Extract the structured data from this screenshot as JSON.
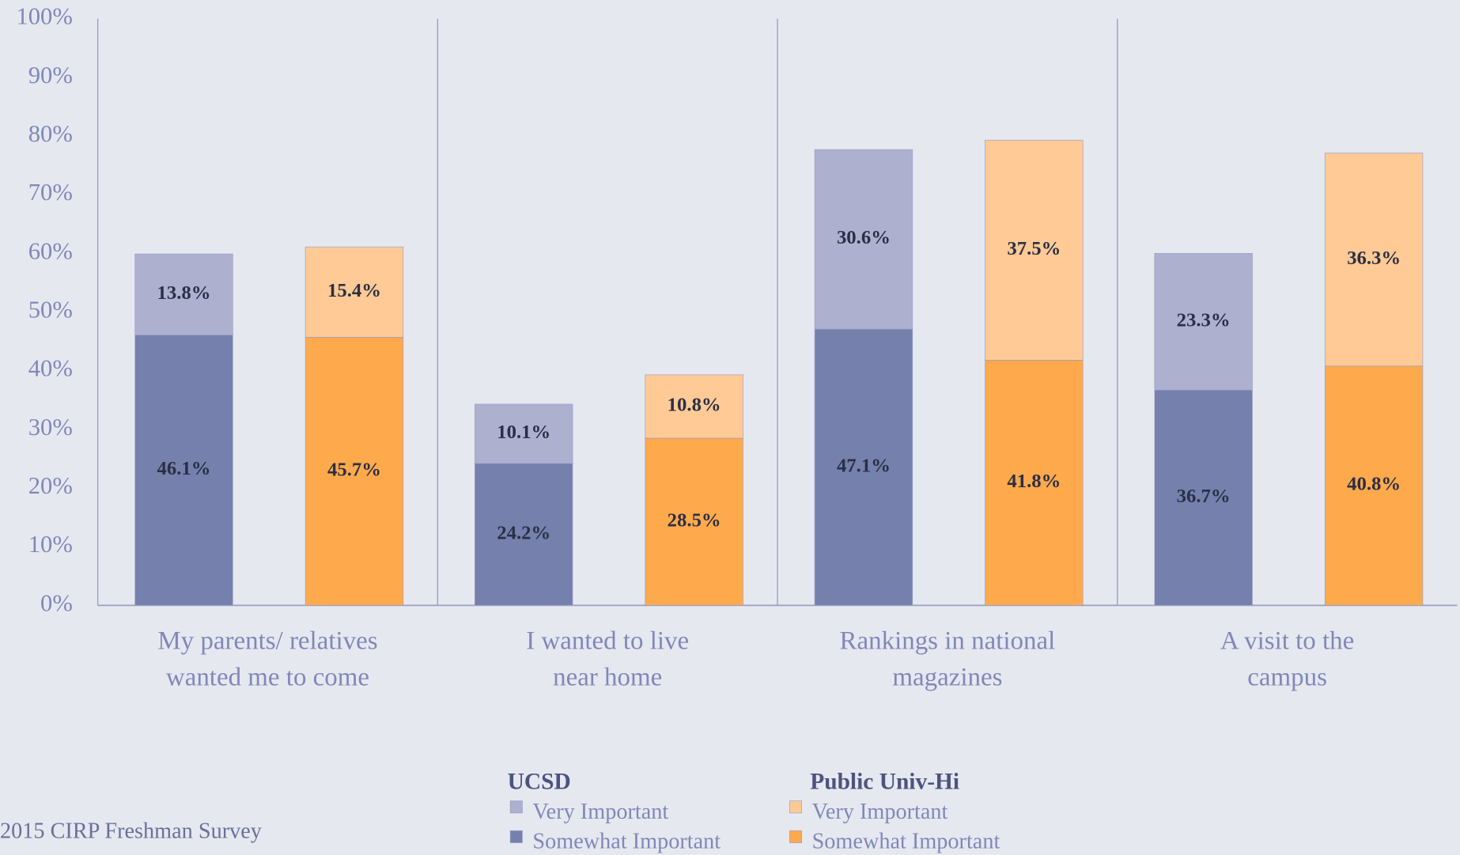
{
  "chart_data": {
    "type": "stacked_bar",
    "categories": [
      "My parents/ relatives\nwanted me to come",
      "I wanted to live\nnear home",
      "Rankings in national\nmagazines",
      "A visit to the\ncampus"
    ],
    "groups": [
      "UCSD",
      "Public Univ-Hi"
    ],
    "series": [
      {
        "name": "Somewhat Important",
        "group": 0,
        "color": "#7580ad",
        "values": [
          46.1,
          24.2,
          47.1,
          36.7
        ],
        "value_labels": [
          "46.1%",
          "24.2%",
          "47.1%",
          "36.7%"
        ]
      },
      {
        "name": "Very Important",
        "group": 0,
        "color": "#adb1cf",
        "values": [
          13.8,
          10.1,
          30.6,
          23.3
        ],
        "value_labels": [
          "13.8%",
          "10.1%",
          "30.6%",
          "23.3%"
        ]
      },
      {
        "name": "Somewhat Important",
        "group": 1,
        "color": "#ffa94d",
        "values": [
          45.7,
          28.5,
          41.8,
          40.8
        ],
        "value_labels": [
          "45.7%",
          "28.5%",
          "41.8%",
          "40.8%"
        ]
      },
      {
        "name": "Very Important",
        "group": 1,
        "color": "#ffca96",
        "values": [
          15.4,
          10.8,
          37.5,
          36.3
        ],
        "value_labels": [
          "15.4%",
          "10.8%",
          "37.5%",
          "36.3%"
        ]
      }
    ],
    "ylim": [
      0,
      100
    ],
    "yticks": [
      {
        "value": 0,
        "label": "0%"
      },
      {
        "value": 10,
        "label": "10%"
      },
      {
        "value": 20,
        "label": "20%"
      },
      {
        "value": 30,
        "label": "30%"
      },
      {
        "value": 40,
        "label": "40%"
      },
      {
        "value": 50,
        "label": "50%"
      },
      {
        "value": 60,
        "label": "60%"
      },
      {
        "value": 70,
        "label": "70%"
      },
      {
        "value": 80,
        "label": "80%"
      },
      {
        "value": 90,
        "label": "90%"
      },
      {
        "value": 100,
        "label": "100%"
      }
    ],
    "footer": "2015 CIRP Freshman Survey"
  }
}
